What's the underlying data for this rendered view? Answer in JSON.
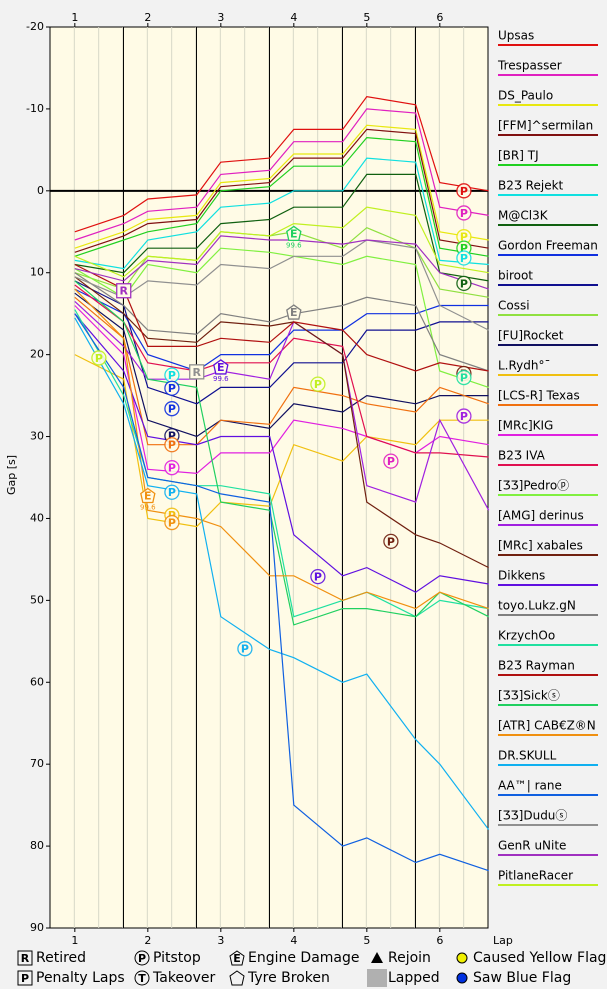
{
  "chart_data": {
    "type": "line",
    "y_label": "Gap [s]",
    "x_label": "Lap",
    "xlim": [
      0.66,
      6.66
    ],
    "xticks": [
      1,
      2,
      3,
      4,
      5,
      6
    ],
    "ylim": [
      -20,
      90
    ],
    "y_inverted": true,
    "yticks": [
      -20,
      -10,
      0,
      10,
      20,
      30,
      40,
      50,
      60,
      70,
      80,
      90
    ],
    "x": [
      1,
      1.67,
      2,
      2.67,
      3,
      3.67,
      4,
      4.67,
      5,
      5.67,
      6,
      6.67
    ],
    "series": [
      {
        "name": "Upsas",
        "color": "#e01010",
        "values": [
          5,
          3,
          1,
          0.5,
          -3.5,
          -4,
          -7.5,
          -7.5,
          -11.5,
          -10.5,
          -1,
          0
        ]
      },
      {
        "name": "Trespasser",
        "color": "#e020c0",
        "values": [
          6,
          4,
          2.5,
          2,
          -2,
          -2.5,
          -6,
          -6,
          -10,
          -9.5,
          2,
          3
        ]
      },
      {
        "name": "DS_Paulo",
        "color": "#e8e810",
        "values": [
          7,
          5,
          3.5,
          3,
          -1,
          -1.5,
          -4.5,
          -4.5,
          -8,
          -7.5,
          5,
          6
        ]
      },
      {
        "name": "[FFM]^sermilan",
        "color": "#801010",
        "values": [
          7.5,
          5.5,
          4,
          3.5,
          -0.5,
          -1,
          -4,
          -4,
          -7.5,
          -7,
          6,
          7
        ]
      },
      {
        "name": "[BR] TJ",
        "color": "#20d020",
        "values": [
          8,
          6,
          5,
          4,
          0,
          -0.5,
          -3,
          -3,
          -6.5,
          -6,
          7,
          8
        ]
      },
      {
        "name": "B2Ʒ Rejekt",
        "color": "#10e0e0",
        "values": [
          8.5,
          9.5,
          6,
          5,
          2,
          1.5,
          0,
          0,
          -4,
          -3.5,
          8.5,
          9
        ]
      },
      {
        "name": "M@Cl3K",
        "color": "#106010",
        "values": [
          9,
          10,
          7,
          7,
          4,
          3.5,
          2,
          2,
          -2,
          -2,
          10,
          11
        ]
      },
      {
        "name": "Gordon Freeman",
        "color": "#1030e0",
        "values": [
          12,
          15,
          20,
          22,
          20,
          20,
          17,
          17,
          15,
          15,
          14,
          14
        ]
      },
      {
        "name": "biroot",
        "color": "#101090",
        "values": [
          11,
          14,
          24,
          26,
          24,
          24,
          21,
          21,
          17,
          17,
          16,
          16
        ]
      },
      {
        "name": "Cossi",
        "color": "#90e040",
        "values": [
          10,
          12,
          8,
          8.5,
          5,
          5.5,
          5,
          7,
          4.5,
          7,
          12,
          13
        ]
      },
      {
        "name": "[FU]Rocket",
        "color": "#101060",
        "values": [
          12.5,
          17,
          28,
          30,
          28,
          29,
          26,
          27,
          25,
          26,
          25,
          25
        ]
      },
      {
        "name": "L.Rydh°¯",
        "color": "#f0c010",
        "values": [
          20,
          23,
          40,
          41,
          38,
          38.5,
          31,
          33,
          30,
          31,
          28,
          28
        ]
      },
      {
        "name": "[LCS-R] Texas",
        "color": "#f07010",
        "values": [
          13,
          18,
          31,
          31,
          28,
          28.5,
          24,
          25,
          26,
          27,
          24,
          26
        ]
      },
      {
        "name": "[MRc]KIG",
        "color": "#e020e0",
        "values": [
          14,
          20,
          34,
          34.5,
          32,
          32,
          28,
          29,
          30,
          32,
          30,
          31
        ]
      },
      {
        "name": "B2Ʒ IVA",
        "color": "#e01050",
        "values": [
          11.5,
          16,
          21,
          22,
          21,
          21,
          18,
          19,
          30,
          32,
          32,
          32.5
        ]
      },
      {
        "name": "[ƷƷ]Pedroⓟ",
        "color": "#80f040",
        "values": [
          9.5,
          13,
          9,
          10,
          7,
          7.5,
          8,
          9,
          8,
          9,
          22,
          24
        ]
      },
      {
        "name": "[AMG] derinus",
        "color": "#a020e0",
        "values": [
          13.5,
          19,
          23,
          23,
          22,
          23,
          16,
          20,
          36,
          38,
          28,
          39
        ]
      },
      {
        "name": "[MRc] xabales",
        "color": "#702010",
        "values": [
          10.5,
          15,
          18,
          18.5,
          16,
          16.5,
          16,
          20,
          38,
          42,
          43,
          46
        ]
      },
      {
        "name": "Dikkens",
        "color": "#6010e0",
        "values": [
          15,
          22,
          30,
          31,
          30,
          30,
          42,
          47,
          46,
          49,
          47,
          48
        ]
      },
      {
        "name": "toyo.Lukz.gN",
        "color": "#808080",
        "values": [
          10,
          14,
          17,
          17.5,
          15,
          16,
          15,
          14,
          13,
          14,
          20,
          22
        ]
      },
      {
        "name": "KrzychOo",
        "color": "#20e0a0",
        "values": [
          14.5,
          25,
          35,
          36,
          36,
          37,
          52,
          50,
          49,
          52,
          50,
          51
        ]
      },
      {
        "name": "B2Ʒ Rayman",
        "color": "#b01010",
        "values": [
          9,
          12,
          19,
          19,
          18,
          18.5,
          16,
          17,
          20,
          22,
          21,
          22
        ]
      },
      {
        "name": "[ƷƷ]Sickⓢ",
        "color": "#20d060",
        "values": [
          11,
          16,
          23,
          24,
          38,
          39,
          53,
          51,
          51,
          52,
          49,
          52
        ]
      },
      {
        "name": "[ATR] CAB€Z®N",
        "color": "#f09010",
        "values": [
          12,
          18,
          39,
          40,
          41,
          47,
          47,
          50,
          49,
          51,
          49,
          51
        ]
      },
      {
        "name": "DR.SKULL",
        "color": "#10b0f0",
        "values": [
          15.5,
          26,
          36,
          37,
          52,
          56,
          57,
          60,
          59,
          67,
          70,
          78
        ]
      },
      {
        "name": "AA™| rane",
        "color": "#1060e0",
        "values": [
          15,
          24,
          35,
          36,
          37,
          38,
          75,
          80,
          79,
          82,
          81,
          83
        ]
      },
      {
        "name": "[ƷƷ]Duduⓢ",
        "color": "#909090",
        "values": [
          10.5,
          13,
          11,
          11.5,
          9,
          9.5,
          8,
          8,
          6,
          7,
          14,
          17
        ]
      },
      {
        "name": "GenR uNite",
        "color": "#a030c0",
        "values": [
          9.5,
          11,
          8.5,
          9,
          5.5,
          6,
          6,
          6.5,
          6,
          6.5,
          10,
          12
        ]
      },
      {
        "name": "PitlaneRacer",
        "color": "#c0f020",
        "values": [
          8,
          10.5,
          8,
          8.5,
          5,
          5.5,
          4,
          4.5,
          2,
          3,
          9,
          10
        ]
      }
    ],
    "annotations": [
      {
        "text": "R",
        "x": 1.67,
        "y": 12.2,
        "color": "#a030c0",
        "shape": "square"
      },
      {
        "text": "P",
        "x": 1.33,
        "y": 20.4,
        "color": "#c0f020",
        "shape": "circle"
      },
      {
        "text": "P",
        "x": 2.33,
        "y": 22.5,
        "color": "#10e0e0",
        "shape": "circle"
      },
      {
        "text": "P",
        "x": 2.33,
        "y": 24.1,
        "color": "#1030e0",
        "shape": "circle"
      },
      {
        "text": "P",
        "x": 2.33,
        "y": 26.6,
        "color": "#1030e0",
        "shape": "circle"
      },
      {
        "text": "P",
        "x": 2.33,
        "y": 29.9,
        "color": "#101060",
        "shape": "circle"
      },
      {
        "text": "P",
        "x": 2.33,
        "y": 31,
        "color": "#f07010",
        "shape": "circle"
      },
      {
        "text": "P",
        "x": 2.33,
        "y": 33.8,
        "color": "#e020e0",
        "shape": "circle"
      },
      {
        "text": "P",
        "x": 2.33,
        "y": 36.8,
        "color": "#10b0f0",
        "shape": "circle"
      },
      {
        "text": "P",
        "x": 2.33,
        "y": 39.6,
        "color": "#f0c010",
        "shape": "circle"
      },
      {
        "text": "P",
        "x": 2.33,
        "y": 40.5,
        "color": "#f09010",
        "shape": "circle"
      },
      {
        "text": "E",
        "x": 2,
        "y": 37.2,
        "color": "#f09010",
        "shape": "pentagon",
        "note": "99.6"
      },
      {
        "text": "R",
        "x": 2.67,
        "y": 22.1,
        "color": "#909090",
        "shape": "square"
      },
      {
        "text": "E",
        "x": 3,
        "y": 21.5,
        "color": "#6010e0",
        "shape": "pentagon",
        "note": "99.6"
      },
      {
        "text": "P",
        "x": 3.33,
        "y": 55.9,
        "color": "#10b0f0",
        "shape": "circle"
      },
      {
        "text": "E",
        "x": 4,
        "y": 5.2,
        "color": "#20d060",
        "shape": "pentagon",
        "note": "99.6"
      },
      {
        "text": "E",
        "x": 4,
        "y": 14.8,
        "color": "#808080",
        "shape": "pentagon"
      },
      {
        "text": "P",
        "x": 4.33,
        "y": 23.6,
        "color": "#c0f020",
        "shape": "circle"
      },
      {
        "text": "P",
        "x": 4.33,
        "y": 47.1,
        "color": "#6010e0",
        "shape": "circle"
      },
      {
        "text": "P",
        "x": 5.33,
        "y": 33,
        "color": "#e020c0",
        "shape": "circle"
      },
      {
        "text": "P",
        "x": 5.33,
        "y": 42.8,
        "color": "#702010",
        "shape": "circle"
      },
      {
        "text": "P",
        "x": 6.33,
        "y": 0,
        "color": "#e01010",
        "shape": "circle"
      },
      {
        "text": "P",
        "x": 6.33,
        "y": 2.7,
        "color": "#e020c0",
        "shape": "circle"
      },
      {
        "text": "P",
        "x": 6.33,
        "y": 5.6,
        "color": "#e8e810",
        "shape": "circle"
      },
      {
        "text": "P",
        "x": 6.33,
        "y": 7,
        "color": "#20d020",
        "shape": "circle"
      },
      {
        "text": "P",
        "x": 6.33,
        "y": 8.2,
        "color": "#10e0e0",
        "shape": "circle"
      },
      {
        "text": "P",
        "x": 6.33,
        "y": 11.3,
        "color": "#106010",
        "shape": "circle"
      },
      {
        "text": "P",
        "x": 6.33,
        "y": 22.3,
        "color": "#702010",
        "shape": "circle"
      },
      {
        "text": "P",
        "x": 6.33,
        "y": 22.8,
        "color": "#20e0a0",
        "shape": "circle"
      },
      {
        "text": "P",
        "x": 6.33,
        "y": 27.5,
        "color": "#a020e0",
        "shape": "circle"
      }
    ],
    "key": [
      {
        "symbol": "R",
        "text": "Retired"
      },
      {
        "symbol": "P",
        "text": "Penalty Laps"
      },
      {
        "symbol": "P",
        "text": "Pitstop"
      },
      {
        "symbol": "T",
        "text": "Takeover"
      },
      {
        "symbol": "E",
        "text": "Engine Damage"
      },
      {
        "text": "Tyre Broken"
      },
      {
        "text": "Rejoin"
      },
      {
        "text": "Lapped"
      },
      {
        "text": "Caused Yellow Flag"
      },
      {
        "text": "Saw Blue Flag"
      }
    ]
  }
}
